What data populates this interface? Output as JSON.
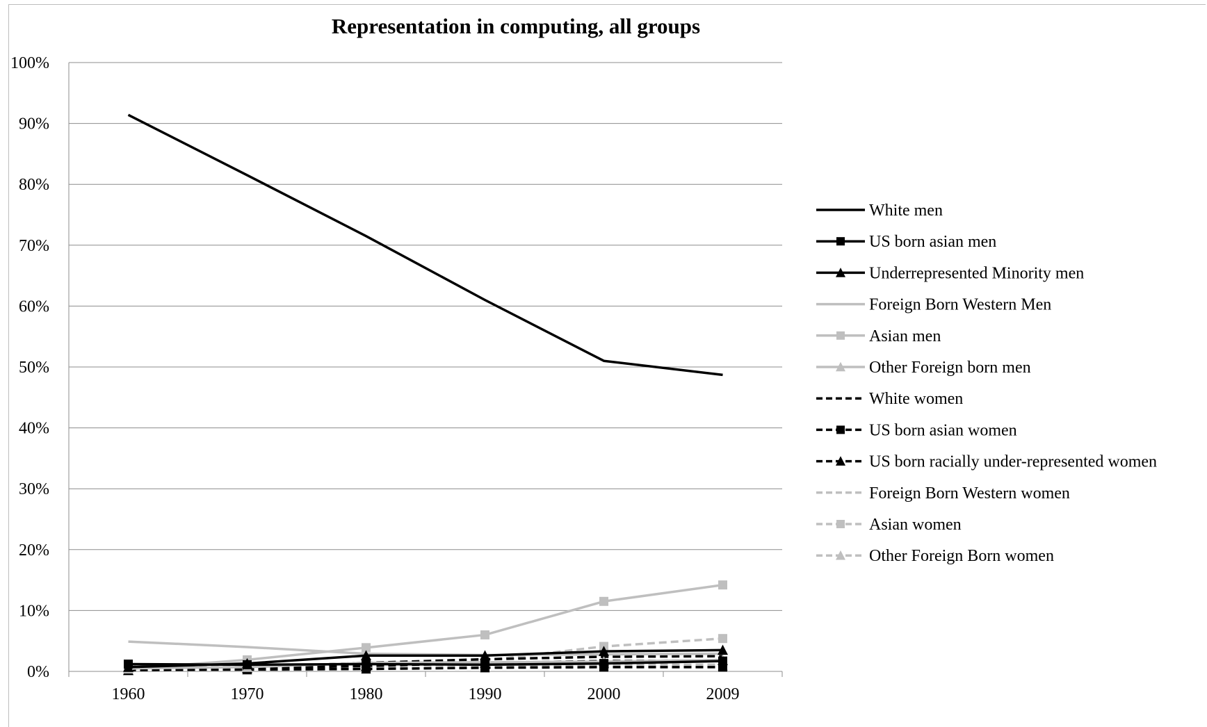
{
  "chart_data": {
    "type": "line",
    "title": "Representation in computing, all groups",
    "xlabel": "",
    "ylabel": "",
    "categories": [
      "1960",
      "1970",
      "1980",
      "1990",
      "2000",
      "2009"
    ],
    "ylim": [
      0,
      100
    ],
    "y_ticks": [
      "0%",
      "10%",
      "20%",
      "30%",
      "40%",
      "50%",
      "60%",
      "70%",
      "80%",
      "90%",
      "100%"
    ],
    "grid": true,
    "legend_position": "right",
    "series": [
      {
        "name": "White men",
        "values": [
          91.4,
          81.5,
          71.5,
          61.0,
          51.0,
          48.7
        ],
        "color": "#000000",
        "dash": "solid",
        "marker": "none"
      },
      {
        "name": "US born asian men",
        "values": [
          1.2,
          1.1,
          1.2,
          1.1,
          1.3,
          1.7
        ],
        "color": "#000000",
        "dash": "solid",
        "marker": "square"
      },
      {
        "name": "Underrepresented Minority men",
        "values": [
          0.7,
          1.3,
          2.6,
          2.6,
          3.3,
          3.5
        ],
        "color": "#000000",
        "dash": "solid",
        "marker": "triangle"
      },
      {
        "name": "Foreign Born Western Men",
        "values": [
          4.9,
          4.0,
          2.9,
          2.7,
          2.8,
          2.9
        ],
        "color": "#bfbfbf",
        "dash": "solid",
        "marker": "none"
      },
      {
        "name": "Asian men",
        "values": [
          0.4,
          1.9,
          3.9,
          6.0,
          11.5,
          14.2
        ],
        "color": "#bfbfbf",
        "dash": "solid",
        "marker": "square"
      },
      {
        "name": "Other Foreign born men",
        "values": [
          0.5,
          0.7,
          1.4,
          1.5,
          1.6,
          1.9
        ],
        "color": "#bfbfbf",
        "dash": "solid",
        "marker": "triangle"
      },
      {
        "name": "White women",
        "values": [
          0.2,
          0.7,
          1.4,
          2.0,
          2.4,
          2.5
        ],
        "color": "#000000",
        "dash": "dashed",
        "marker": "none"
      },
      {
        "name": "US born asian women",
        "values": [
          0.2,
          0.3,
          0.4,
          0.6,
          0.7,
          0.7
        ],
        "color": "#000000",
        "dash": "dashed",
        "marker": "square"
      },
      {
        "name": "US born racially under-represented women",
        "values": [
          0.2,
          0.5,
          0.9,
          1.4,
          1.7,
          1.8
        ],
        "color": "#000000",
        "dash": "dashed",
        "marker": "triangle"
      },
      {
        "name": "Foreign Born Western women",
        "values": [
          0.8,
          0.9,
          1.0,
          1.0,
          1.1,
          1.1
        ],
        "color": "#bfbfbf",
        "dash": "dashed",
        "marker": "none"
      },
      {
        "name": "Asian women",
        "values": [
          0.3,
          0.3,
          0.5,
          1.8,
          4.1,
          5.4
        ],
        "color": "#bfbfbf",
        "dash": "dashed",
        "marker": "square"
      },
      {
        "name": "Other Foreign Born women",
        "values": [
          0.1,
          0.2,
          0.4,
          0.6,
          0.8,
          0.9
        ],
        "color": "#bfbfbf",
        "dash": "dashed",
        "marker": "triangle"
      }
    ]
  }
}
